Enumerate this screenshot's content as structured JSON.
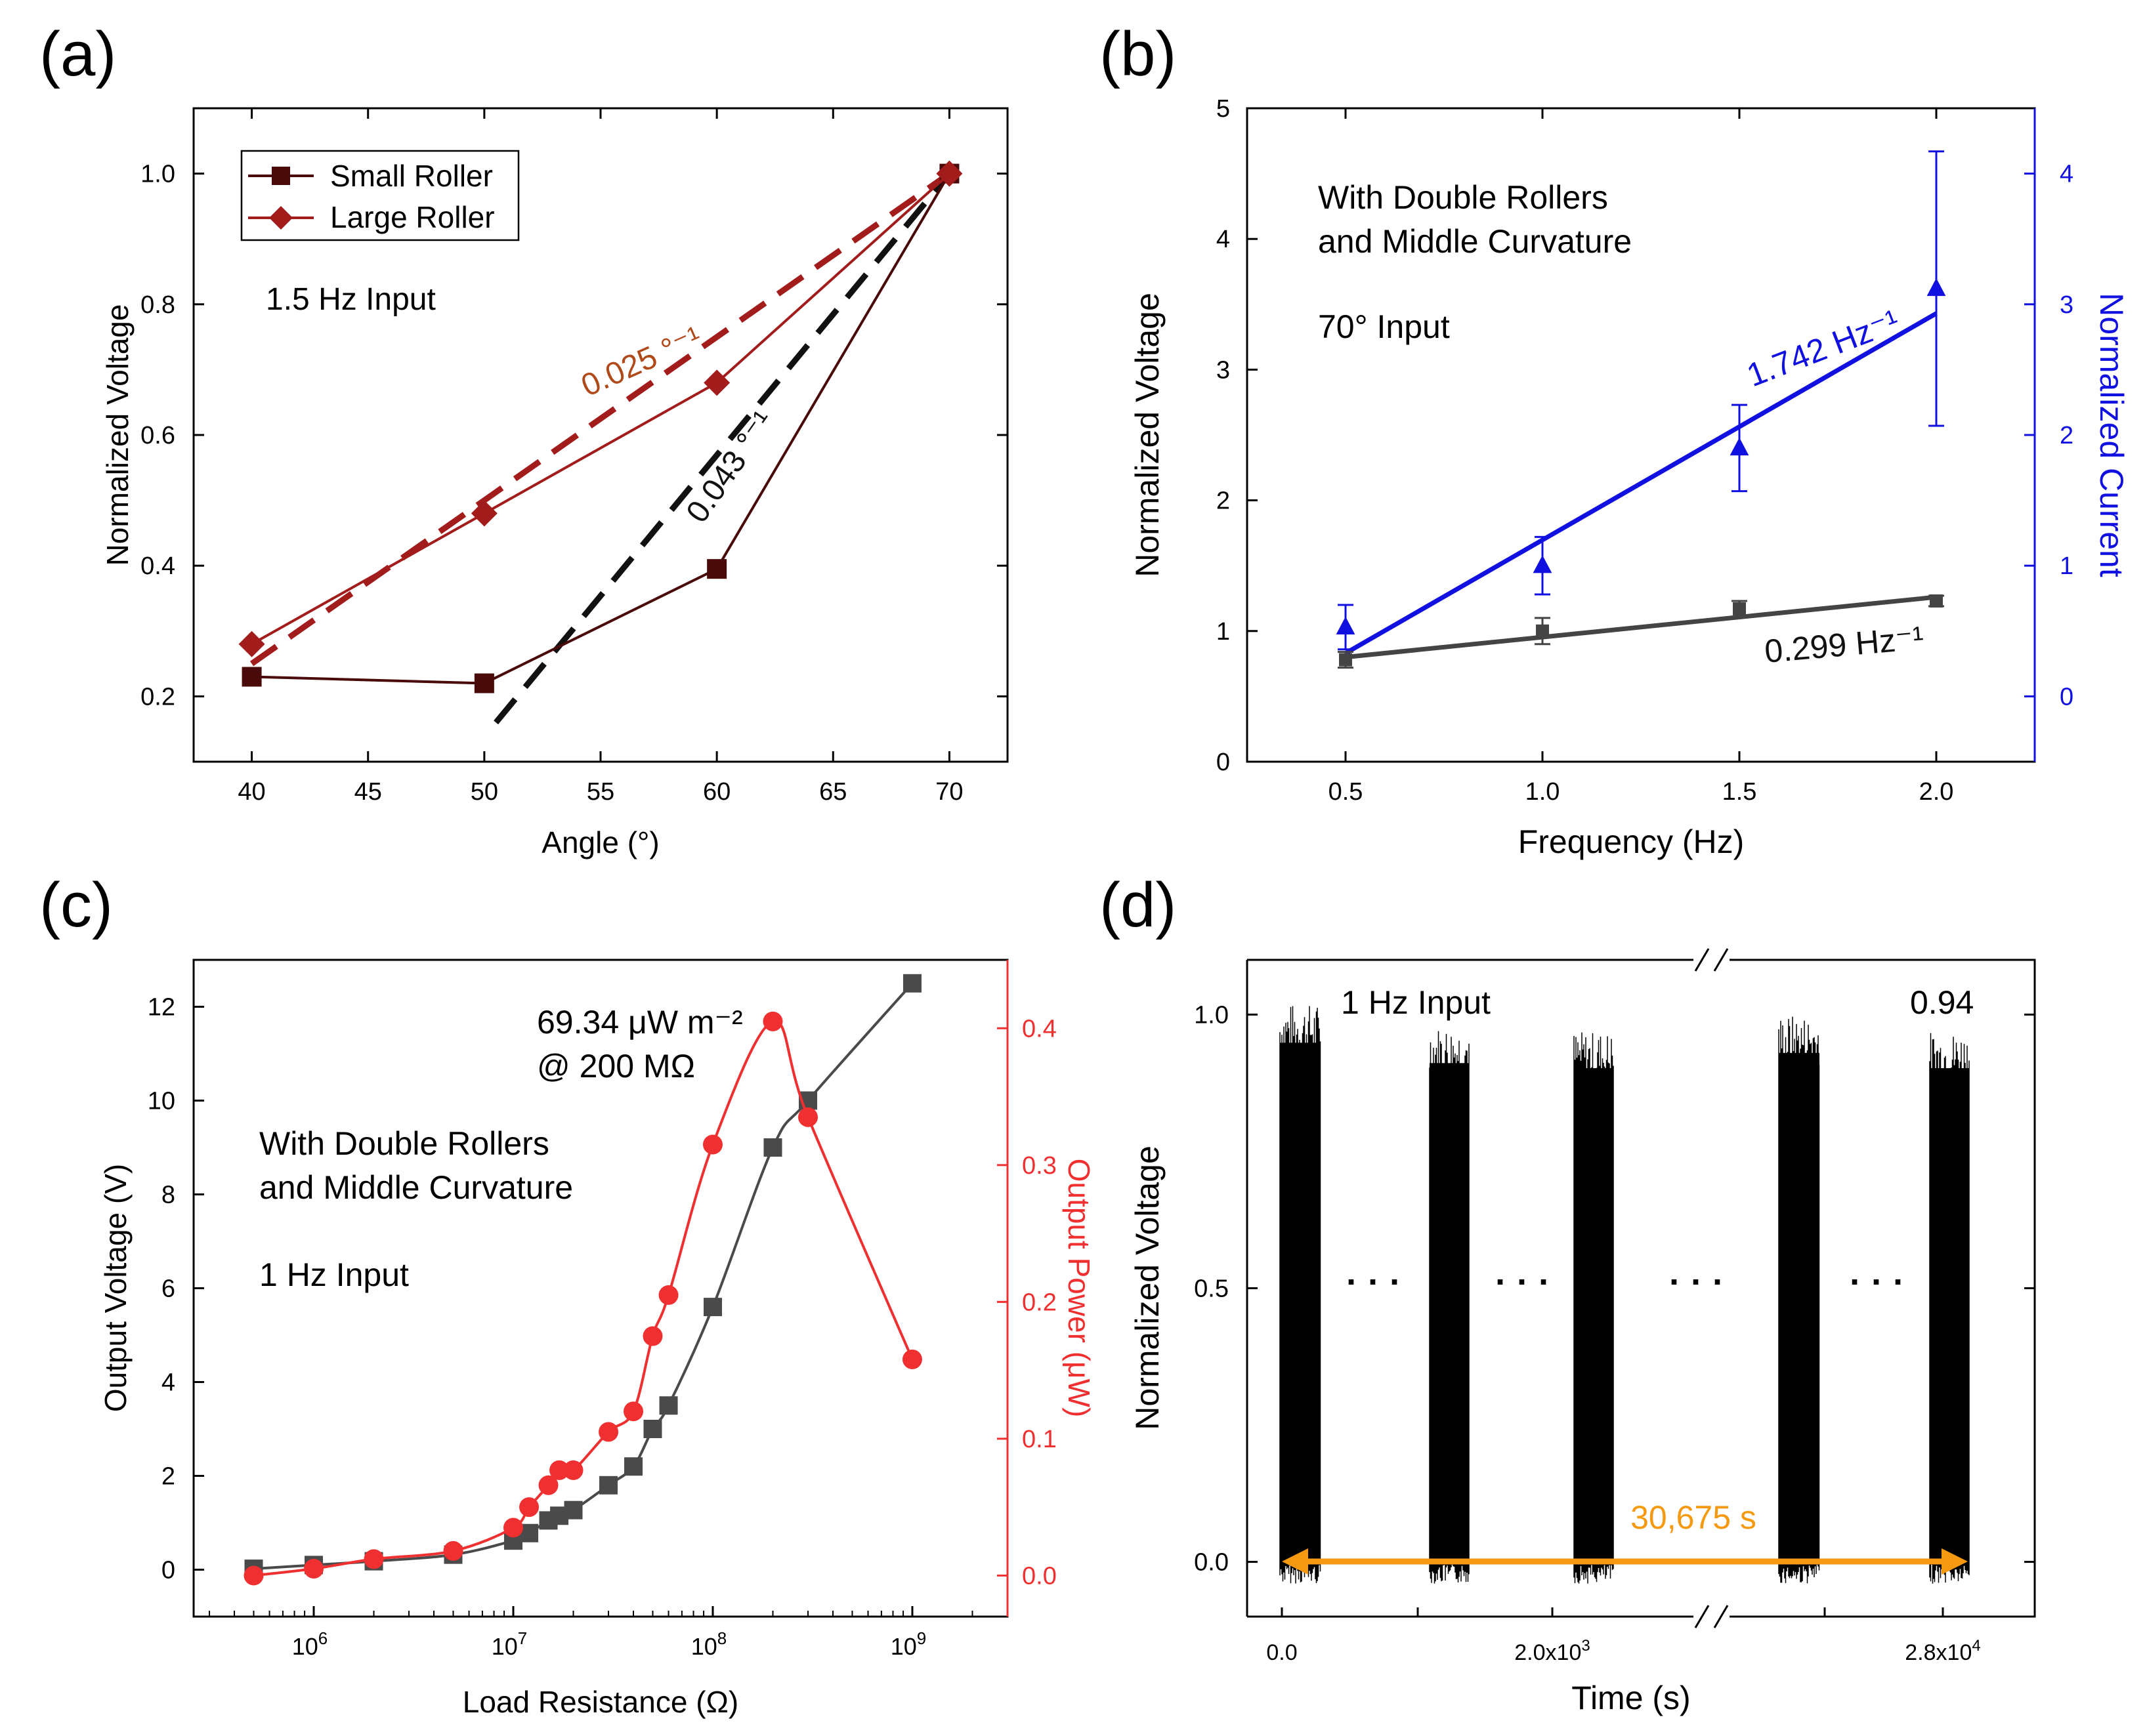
{
  "chart_data": [
    {
      "panel_label": "(a)",
      "type": "line",
      "title": "",
      "xlabel": "Angle (°)",
      "ylabel": "Normalized Voltage",
      "xlim": [
        37.5,
        72.5
      ],
      "ylim": [
        0.1,
        1.1
      ],
      "xticks": [
        "40",
        "45",
        "50",
        "55",
        "60",
        "65",
        "70"
      ],
      "xtick_values": [
        40,
        45,
        50,
        55,
        60,
        65,
        70
      ],
      "yticks": [
        "0.2",
        "0.4",
        "0.6",
        "0.8",
        "1.0"
      ],
      "ytick_values": [
        0.2,
        0.4,
        0.6,
        0.8,
        1.0
      ],
      "annotation": "1.5 Hz Input",
      "legend_position": "top-left",
      "series": [
        {
          "name": "Small Roller",
          "marker": "square",
          "color": "#4a0a0a",
          "x": [
            40,
            50,
            60,
            70
          ],
          "y": [
            0.23,
            0.22,
            0.395,
            1.0
          ]
        },
        {
          "name": "Large Roller",
          "marker": "diamond",
          "color": "#a31c1c",
          "x": [
            40,
            50,
            60,
            70
          ],
          "y": [
            0.28,
            0.48,
            0.68,
            1.0
          ]
        }
      ],
      "fits": [
        {
          "label": "0.025 °⁻¹",
          "color": "#a31c1c",
          "x": [
            40,
            70
          ],
          "y": [
            0.25,
            1.0
          ]
        },
        {
          "label": "0.043 °⁻¹",
          "color": "#111111",
          "x": [
            50.5,
            70
          ],
          "y": [
            0.16,
            1.0
          ]
        }
      ]
    },
    {
      "panel_label": "(b)",
      "type": "scatter",
      "title": "",
      "xlabel": "Frequency (Hz)",
      "ylabel": "Normalized Voltage",
      "y2label": "Normalized Current",
      "xlim": [
        0.25,
        2.25
      ],
      "ylim": [
        0,
        5
      ],
      "y2lim": [
        -0.5,
        4.5
      ],
      "xticks": [
        "0.5",
        "1.0",
        "1.5",
        "2.0"
      ],
      "xtick_values": [
        0.5,
        1.0,
        1.5,
        2.0
      ],
      "yticks": [
        "0",
        "1",
        "2",
        "3",
        "4",
        "5"
      ],
      "ytick_values": [
        0,
        1,
        2,
        3,
        4,
        5
      ],
      "y2ticks": [
        "0",
        "1",
        "2",
        "3",
        "4"
      ],
      "y2tick_values": [
        0,
        1,
        2,
        3,
        4
      ],
      "annotations": [
        "With Double Rollers",
        "and Middle Curvature",
        "70° Input"
      ],
      "series": [
        {
          "name": "Normalized Voltage",
          "axis": "left",
          "color": "#444444",
          "marker": "square",
          "x": [
            0.5,
            1.0,
            1.5,
            2.0
          ],
          "y": [
            0.78,
            1.0,
            1.17,
            1.23
          ],
          "err": [
            0.06,
            0.1,
            0.06,
            0.04
          ]
        },
        {
          "name": "Normalized Current",
          "axis": "right",
          "color": "#1010e0",
          "marker": "triangle",
          "x": [
            0.5,
            1.0,
            1.5,
            2.0
          ],
          "y": [
            0.53,
            1.0,
            1.9,
            3.12
          ],
          "err": [
            0.17,
            0.22,
            0.33,
            1.05
          ]
        }
      ],
      "fits": [
        {
          "label": "1.742 Hz⁻¹",
          "axis": "right",
          "color": "#1010e0",
          "x": [
            0.5,
            2.0
          ],
          "y": [
            0.33,
            2.93
          ]
        },
        {
          "label": "0.299 Hz⁻¹",
          "axis": "left",
          "color": "#444444",
          "x": [
            0.5,
            2.0
          ],
          "y": [
            0.8,
            1.26
          ]
        }
      ]
    },
    {
      "panel_label": "(c)",
      "type": "scatter",
      "title": "",
      "xlabel": "Load Resistance (Ω)",
      "ylabel": "Output Voltage (V)",
      "y2label": "Output Power (μW)",
      "xscale": "log",
      "xlim": [
        250000,
        3000000000
      ],
      "ylim": [
        -1,
        13
      ],
      "y2lim": [
        -0.03,
        0.45
      ],
      "xticks_base": "10",
      "xticks_exp": [
        "6",
        "7",
        "8",
        "9"
      ],
      "xtick_values": [
        1000000,
        10000000,
        100000000,
        1000000000
      ],
      "yticks": [
        "0",
        "2",
        "4",
        "6",
        "8",
        "10",
        "12"
      ],
      "ytick_values": [
        0,
        2,
        4,
        6,
        8,
        10,
        12
      ],
      "y2ticks": [
        "0.0",
        "0.1",
        "0.2",
        "0.3",
        "0.4"
      ],
      "y2tick_values": [
        0,
        0.1,
        0.2,
        0.3,
        0.4
      ],
      "annotations": [
        "69.34 μW m⁻²",
        "@ 200 MΩ",
        "With Double Rollers",
        "and Middle Curvature",
        "1 Hz Input"
      ],
      "series": [
        {
          "name": "Output Voltage",
          "axis": "left",
          "color": "#4a4a4a",
          "marker": "square",
          "x": [
            500000,
            1000000,
            2000000,
            5000000,
            10000000,
            12000000,
            15000000,
            17000000,
            20000000,
            30000000,
            40000000,
            50000000,
            60000000,
            100000000,
            200000000,
            300000000,
            1000000000
          ],
          "y": [
            0.02,
            0.1,
            0.18,
            0.32,
            0.62,
            0.78,
            1.05,
            1.15,
            1.27,
            1.8,
            2.2,
            3.0,
            3.5,
            5.6,
            9.0,
            10.0,
            12.5
          ]
        },
        {
          "name": "Output Power",
          "axis": "right",
          "color": "#f03030",
          "marker": "circle",
          "x": [
            500000,
            1000000,
            2000000,
            5000000,
            10000000,
            12000000,
            15000000,
            17000000,
            20000000,
            30000000,
            40000000,
            50000000,
            60000000,
            100000000,
            200000000,
            300000000,
            1000000000
          ],
          "y": [
            0.0,
            0.005,
            0.012,
            0.018,
            0.035,
            0.05,
            0.066,
            0.077,
            0.077,
            0.105,
            0.12,
            0.175,
            0.205,
            0.315,
            0.405,
            0.335,
            0.158
          ]
        }
      ]
    },
    {
      "panel_label": "(d)",
      "type": "line",
      "title": "",
      "xlabel": "Time (s)",
      "ylabel": "Normalized Voltage",
      "xaxis_break": true,
      "ylim": [
        -0.1,
        1.1
      ],
      "yticks": [
        "0.0",
        "0.5",
        "1.0"
      ],
      "ytick_values": [
        0,
        0.5,
        1.0
      ],
      "xticks_base": [
        "0.0",
        "2.0x10",
        "2.8x10"
      ],
      "xticks_exp": [
        "",
        "3",
        "4"
      ],
      "annotation_input": "1 Hz Input",
      "annotation_value": "0.94",
      "span_label": "30,675 s",
      "span_color": "#f59a10",
      "ellipsis": "· · ·",
      "bursts": [
        {
          "label": "burst-1",
          "peak": 1.02
        },
        {
          "label": "burst-2",
          "peak": 0.98
        },
        {
          "label": "burst-3",
          "peak": 0.97
        },
        {
          "label": "burst-4",
          "peak": 1.0
        },
        {
          "label": "burst-5",
          "peak": 0.97
        }
      ]
    }
  ]
}
